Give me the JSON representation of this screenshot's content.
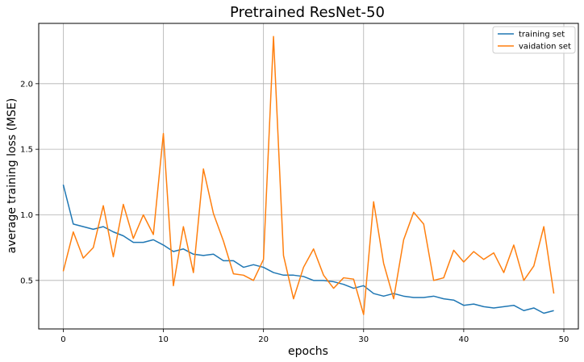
{
  "chart_data": {
    "type": "line",
    "title": "Pretrained ResNet-50",
    "xlabel": "epochs",
    "ylabel": "average training loss (MSE)",
    "xlim": [
      -2.45,
      51.45
    ],
    "ylim": [
      0.13,
      2.46
    ],
    "xticks": [
      0,
      10,
      20,
      30,
      40,
      50
    ],
    "yticks": [
      0.5,
      1.0,
      1.5,
      2.0
    ],
    "xtick_labels": [
      "0",
      "10",
      "20",
      "30",
      "40",
      "50"
    ],
    "ytick_labels": [
      "0.5",
      "1.0",
      "1.5",
      "2.0"
    ],
    "grid": true,
    "legend_position": "top-right",
    "x": [
      0,
      1,
      2,
      3,
      4,
      5,
      6,
      7,
      8,
      9,
      10,
      11,
      12,
      13,
      14,
      15,
      16,
      17,
      18,
      19,
      20,
      21,
      22,
      23,
      24,
      25,
      26,
      27,
      28,
      29,
      30,
      31,
      32,
      33,
      34,
      35,
      36,
      37,
      38,
      39,
      40,
      41,
      42,
      43,
      44,
      45,
      46,
      47,
      48,
      49
    ],
    "series": [
      {
        "name": "training set",
        "color": "#1f77b4",
        "values": [
          1.23,
          0.93,
          0.91,
          0.89,
          0.91,
          0.87,
          0.84,
          0.79,
          0.79,
          0.81,
          0.77,
          0.72,
          0.74,
          0.7,
          0.69,
          0.7,
          0.65,
          0.65,
          0.6,
          0.62,
          0.6,
          0.56,
          0.54,
          0.54,
          0.53,
          0.5,
          0.5,
          0.49,
          0.47,
          0.44,
          0.46,
          0.4,
          0.38,
          0.4,
          0.38,
          0.37,
          0.37,
          0.38,
          0.36,
          0.35,
          0.31,
          0.32,
          0.3,
          0.29,
          0.3,
          0.31,
          0.27,
          0.29,
          0.25,
          0.27
        ]
      },
      {
        "name": "vaidation set",
        "color": "#ff7f0e",
        "values": [
          0.57,
          0.87,
          0.67,
          0.75,
          1.07,
          0.68,
          1.08,
          0.82,
          1.0,
          0.85,
          1.62,
          0.46,
          0.91,
          0.56,
          1.35,
          1.01,
          0.8,
          0.55,
          0.54,
          0.5,
          0.66,
          2.36,
          0.69,
          0.36,
          0.6,
          0.74,
          0.54,
          0.44,
          0.52,
          0.51,
          0.24,
          1.1,
          0.63,
          0.36,
          0.81,
          1.02,
          0.93,
          0.5,
          0.52,
          0.73,
          0.64,
          0.72,
          0.66,
          0.71,
          0.56,
          0.77,
          0.5,
          0.61,
          0.91,
          0.4
        ]
      }
    ]
  }
}
